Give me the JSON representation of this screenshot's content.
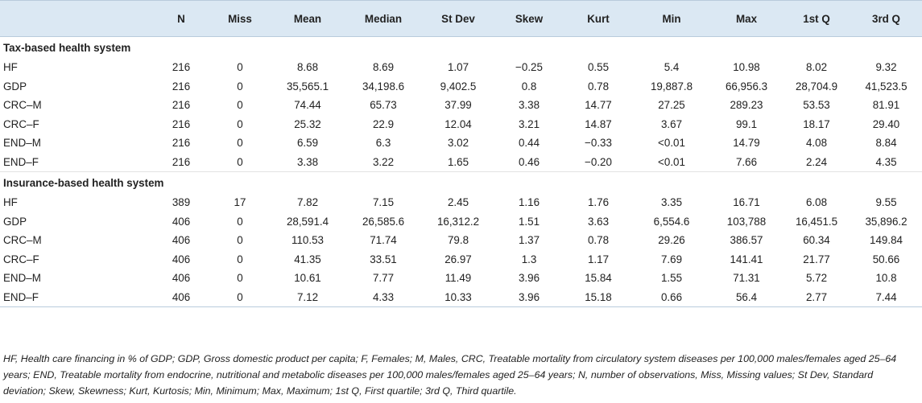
{
  "table": {
    "headers": [
      "",
      "N",
      "Miss",
      "Mean",
      "Median",
      "St Dev",
      "Skew",
      "Kurt",
      "Min",
      "Max",
      "1st Q",
      "3rd Q"
    ],
    "sections": [
      {
        "title": "Tax-based health system",
        "rows": [
          [
            "HF",
            "216",
            "0",
            "8.68",
            "8.69",
            "1.07",
            "−0.25",
            "0.55",
            "5.4",
            "10.98",
            "8.02",
            "9.32"
          ],
          [
            "GDP",
            "216",
            "0",
            "35,565.1",
            "34,198.6",
            "9,402.5",
            "0.8",
            "0.78",
            "19,887.8",
            "66,956.3",
            "28,704.9",
            "41,523.5"
          ],
          [
            "CRC–M",
            "216",
            "0",
            "74.44",
            "65.73",
            "37.99",
            "3.38",
            "14.77",
            "27.25",
            "289.23",
            "53.53",
            "81.91"
          ],
          [
            "CRC–F",
            "216",
            "0",
            "25.32",
            "22.9",
            "12.04",
            "3.21",
            "14.87",
            "3.67",
            "99.1",
            "18.17",
            "29.40"
          ],
          [
            "END–M",
            "216",
            "0",
            "6.59",
            "6.3",
            "3.02",
            "0.44",
            "−0.33",
            "<0.01",
            "14.79",
            "4.08",
            "8.84"
          ],
          [
            "END–F",
            "216",
            "0",
            "3.38",
            "3.22",
            "1.65",
            "0.46",
            "−0.20",
            "<0.01",
            "7.66",
            "2.24",
            "4.35"
          ]
        ]
      },
      {
        "title": "Insurance-based health system",
        "rows": [
          [
            "HF",
            "389",
            "17",
            "7.82",
            "7.15",
            "2.45",
            "1.16",
            "1.76",
            "3.35",
            "16.71",
            "6.08",
            "9.55"
          ],
          [
            "GDP",
            "406",
            "0",
            "28,591.4",
            "26,585.6",
            "16,312.2",
            "1.51",
            "3.63",
            "6,554.6",
            "103,788",
            "16,451.5",
            "35,896.2"
          ],
          [
            "CRC–M",
            "406",
            "0",
            "110.53",
            "71.74",
            "79.8",
            "1.37",
            "0.78",
            "29.26",
            "386.57",
            "60.34",
            "149.84"
          ],
          [
            "CRC–F",
            "406",
            "0",
            "41.35",
            "33.51",
            "26.97",
            "1.3",
            "1.17",
            "7.69",
            "141.41",
            "21.77",
            "50.66"
          ],
          [
            "END–M",
            "406",
            "0",
            "10.61",
            "7.77",
            "11.49",
            "3.96",
            "15.84",
            "1.55",
            "71.31",
            "5.72",
            "10.8"
          ],
          [
            "END–F",
            "406",
            "0",
            "7.12",
            "4.33",
            "10.33",
            "3.96",
            "15.18",
            "0.66",
            "56.4",
            "2.77",
            "7.44"
          ]
        ]
      }
    ]
  },
  "footnote": "HF, Health care financing in % of GDP; GDP, Gross domestic product per capita; F, Females; M, Males, CRC, Treatable mortality from circulatory system diseases per 100,000 males/females aged 25–64 years; END, Treatable mortality from endocrine, nutritional and metabolic diseases per 100,000 males/females aged 25–64 years; N, number of observations, Miss, Missing values; St Dev, Standard deviation; Skew, Skewness; Kurt, Kurtosis; Min, Minimum; Max, Maximum; 1st Q, First quartile; 3rd Q, Third quartile."
}
